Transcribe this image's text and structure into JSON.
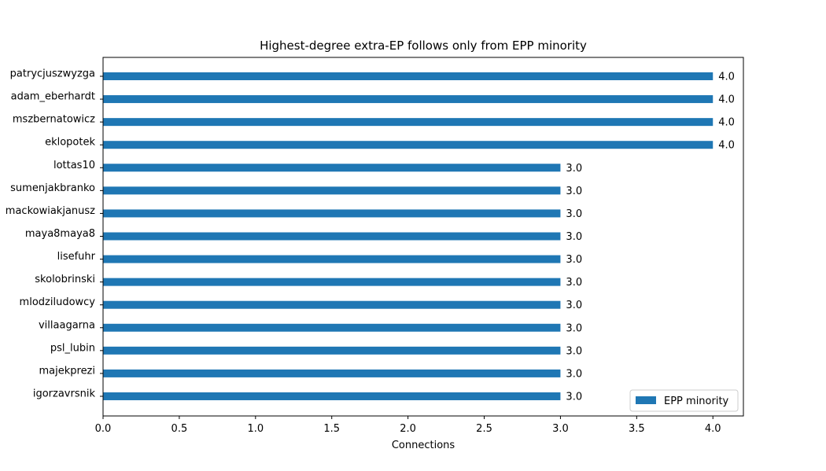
{
  "chart_data": {
    "type": "bar",
    "orientation": "horizontal",
    "title": "Highest-degree extra-EP follows only from EPP minority",
    "xlabel": "Connections",
    "ylabel": "",
    "xlim": [
      0,
      4.2
    ],
    "x_ticks": [
      0.0,
      0.5,
      1.0,
      1.5,
      2.0,
      2.5,
      3.0,
      3.5,
      4.0
    ],
    "x_tick_labels": [
      "0.0",
      "0.5",
      "1.0",
      "1.5",
      "2.0",
      "2.5",
      "3.0",
      "3.5",
      "4.0"
    ],
    "categories": [
      "patrycjuszwyzga",
      "adam_eberhardt",
      "mszbernatowicz",
      "eklopotek",
      "lottas10",
      "sumenjakbranko",
      "mackowiakjanusz",
      "maya8maya8",
      "lisefuhr",
      "skolobrinski",
      "mlodziludowcy",
      "villaagarna",
      "psl_lubin",
      "majekprezi",
      "igorzavrsnik"
    ],
    "series": [
      {
        "name": "EPP minority",
        "color": "#1f77b4",
        "values": [
          4.0,
          4.0,
          4.0,
          4.0,
          3.0,
          3.0,
          3.0,
          3.0,
          3.0,
          3.0,
          3.0,
          3.0,
          3.0,
          3.0,
          3.0
        ],
        "value_labels": [
          "4.0",
          "4.0",
          "4.0",
          "4.0",
          "3.0",
          "3.0",
          "3.0",
          "3.0",
          "3.0",
          "3.0",
          "3.0",
          "3.0",
          "3.0",
          "3.0",
          "3.0"
        ]
      }
    ],
    "legend_position": "lower-right",
    "grid": false
  }
}
